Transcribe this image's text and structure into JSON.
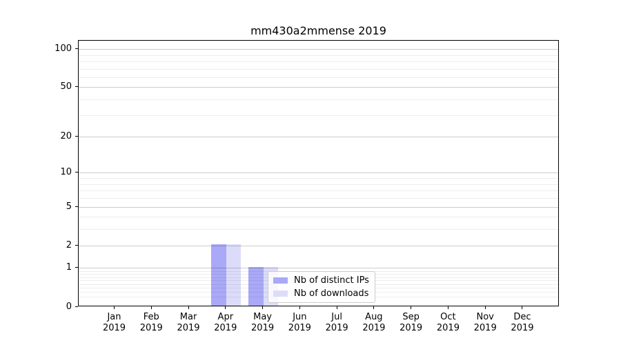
{
  "chart_data": {
    "type": "bar",
    "title": "mm430a2mmense 2019",
    "categories": [
      "Jan",
      "Feb",
      "Mar",
      "Apr",
      "May",
      "Jun",
      "Jul",
      "Aug",
      "Sep",
      "Oct",
      "Nov",
      "Dec"
    ],
    "category_year": "2019",
    "series": [
      {
        "name": "Nb of distinct IPs",
        "color": "#a9a9f8",
        "values": [
          0,
          0,
          0,
          2,
          1,
          0,
          0,
          0,
          0,
          0,
          0,
          0
        ]
      },
      {
        "name": "Nb of downloads",
        "color": "#dcdcfa",
        "values": [
          0,
          0,
          0,
          2,
          1,
          0,
          0,
          0,
          0,
          0,
          0,
          0
        ]
      }
    ],
    "xlabel": "",
    "ylabel": "",
    "yscale": "log1p",
    "ylim": [
      0,
      117
    ],
    "yticks": [
      0,
      1,
      2,
      5,
      10,
      20,
      50,
      100
    ],
    "yticks_minor": [
      0.2,
      0.3,
      0.4,
      0.5,
      0.6,
      0.7,
      0.8,
      0.9,
      3,
      4,
      6,
      7,
      8,
      9,
      30,
      40,
      60,
      70,
      80,
      90
    ],
    "grid": "horizontal",
    "legend": {
      "position": "lower center",
      "labels": [
        "Nb of distinct IPs",
        "Nb of downloads"
      ]
    }
  }
}
